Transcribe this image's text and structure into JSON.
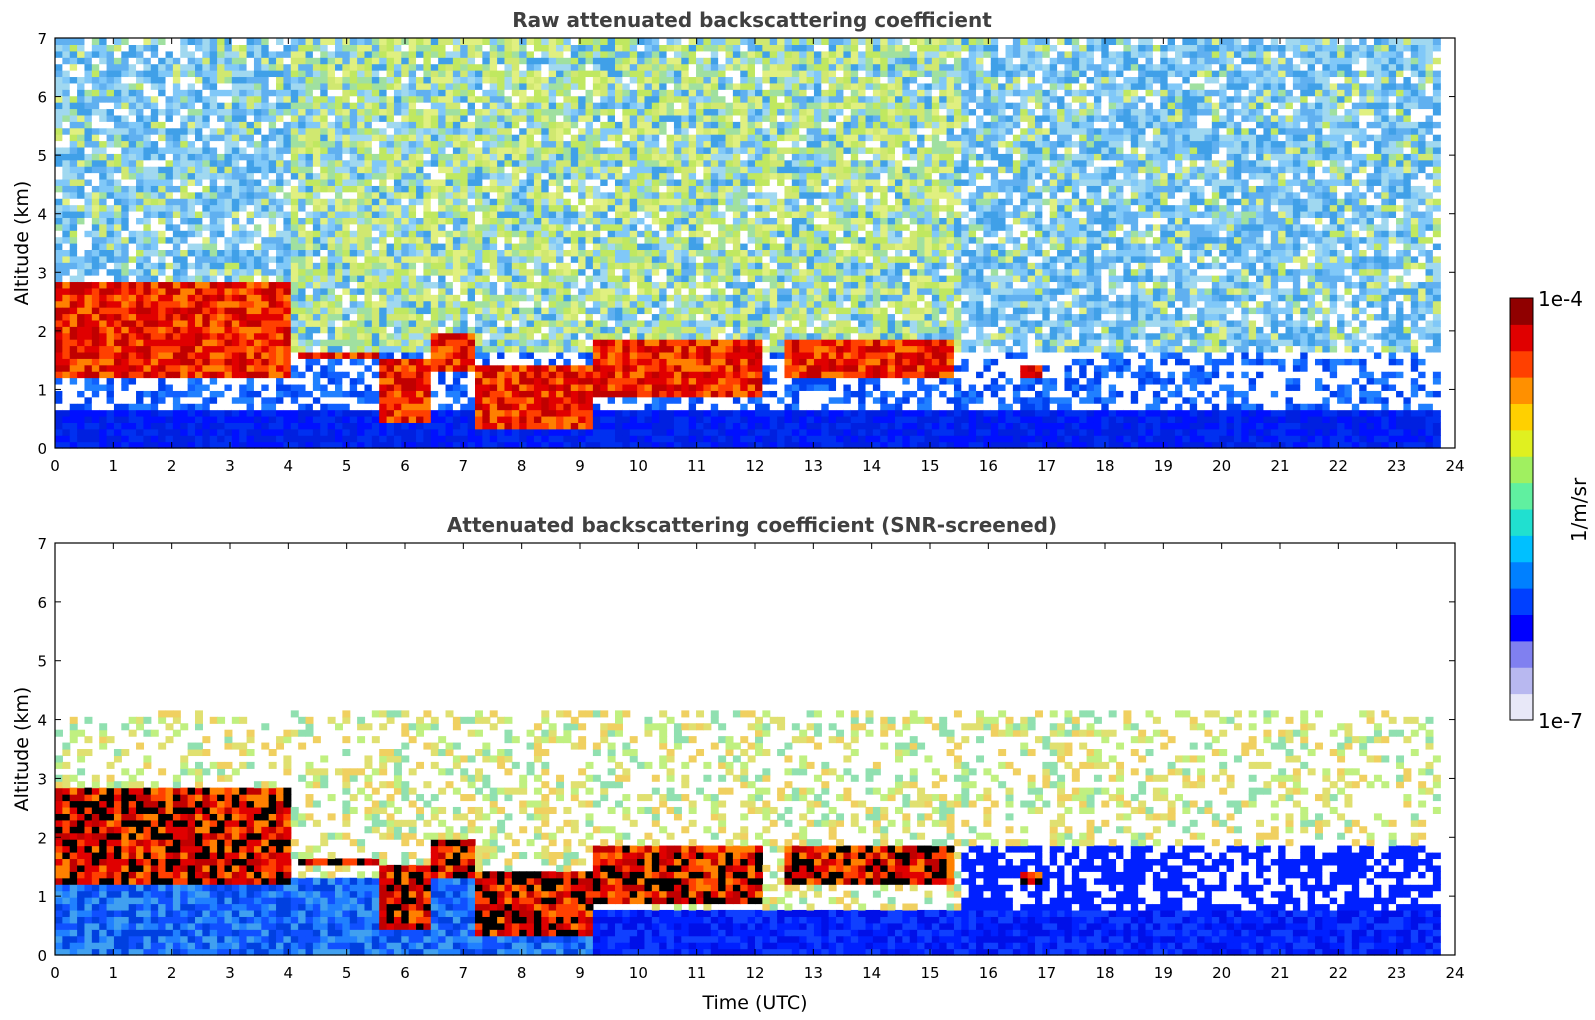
{
  "chart_data": [
    {
      "type": "heatmap",
      "title": "Raw attenuated backscattering coefficient",
      "xlabel": "",
      "ylabel": "Altitude (km)",
      "xlim": [
        0,
        24
      ],
      "ylim": [
        0,
        7
      ],
      "xticks": [
        "0",
        "1",
        "2",
        "3",
        "4",
        "5",
        "6",
        "7",
        "8",
        "9",
        "10",
        "11",
        "12",
        "13",
        "14",
        "15",
        "16",
        "17",
        "18",
        "19",
        "20",
        "21",
        "22",
        "23",
        "24"
      ],
      "yticks": [
        "0",
        "1",
        "2",
        "3",
        "4",
        "5",
        "6",
        "7"
      ],
      "data_end_hour": 23.8,
      "colorscale": "jet (log)",
      "cloud_layers": [
        {
          "t_start": 0,
          "t_end": 4,
          "altitude_km": [
            1.2,
            2.8
          ],
          "intensity": "high"
        },
        {
          "t_start": 4.2,
          "t_end": 5.5,
          "altitude_km": [
            1.5,
            1.6
          ],
          "intensity": "high"
        },
        {
          "t_start": 5.5,
          "t_end": 6.5,
          "altitude_km": [
            0.4,
            1.5
          ],
          "intensity": "high"
        },
        {
          "t_start": 6.5,
          "t_end": 7.2,
          "altitude_km": [
            1.3,
            2.0
          ],
          "intensity": "high"
        },
        {
          "t_start": 7.2,
          "t_end": 9.2,
          "altitude_km": [
            0.3,
            1.4
          ],
          "intensity": "high"
        },
        {
          "t_start": 9.2,
          "t_end": 12.1,
          "altitude_km": [
            0.9,
            1.9
          ],
          "intensity": "high"
        },
        {
          "t_start": 12.5,
          "t_end": 15.4,
          "altitude_km": [
            1.2,
            1.9
          ],
          "intensity": "high"
        },
        {
          "t_start": 16.5,
          "t_end": 16.9,
          "altitude_km": [
            1.2,
            1.4
          ],
          "intensity": "high"
        }
      ]
    },
    {
      "type": "heatmap",
      "title": "Attenuated backscattering coefficient (SNR-screened)",
      "xlabel": "Time (UTC)",
      "ylabel": "Altitude (km)",
      "xlim": [
        0,
        24
      ],
      "ylim": [
        0,
        7
      ],
      "xticks": [
        "0",
        "1",
        "2",
        "3",
        "4",
        "5",
        "6",
        "7",
        "8",
        "9",
        "10",
        "11",
        "12",
        "13",
        "14",
        "15",
        "16",
        "17",
        "18",
        "19",
        "20",
        "21",
        "22",
        "23",
        "24"
      ],
      "yticks": [
        "0",
        "1",
        "2",
        "3",
        "4",
        "5",
        "6",
        "7"
      ],
      "data_end_hour": 23.8,
      "colorscale": "jet (log)"
    }
  ],
  "colorbar": {
    "max_label": "1e-4",
    "min_label": "1e-7",
    "unit_label": "1/m/sr",
    "colors": [
      "#e8e8f8",
      "#b8b8f0",
      "#8080f0",
      "#0000ff",
      "#0040ff",
      "#0080ff",
      "#00c0ff",
      "#20e0d0",
      "#60f0a0",
      "#a0f060",
      "#e0f020",
      "#ffd000",
      "#ff9000",
      "#ff4000",
      "#e00000",
      "#900000"
    ]
  }
}
